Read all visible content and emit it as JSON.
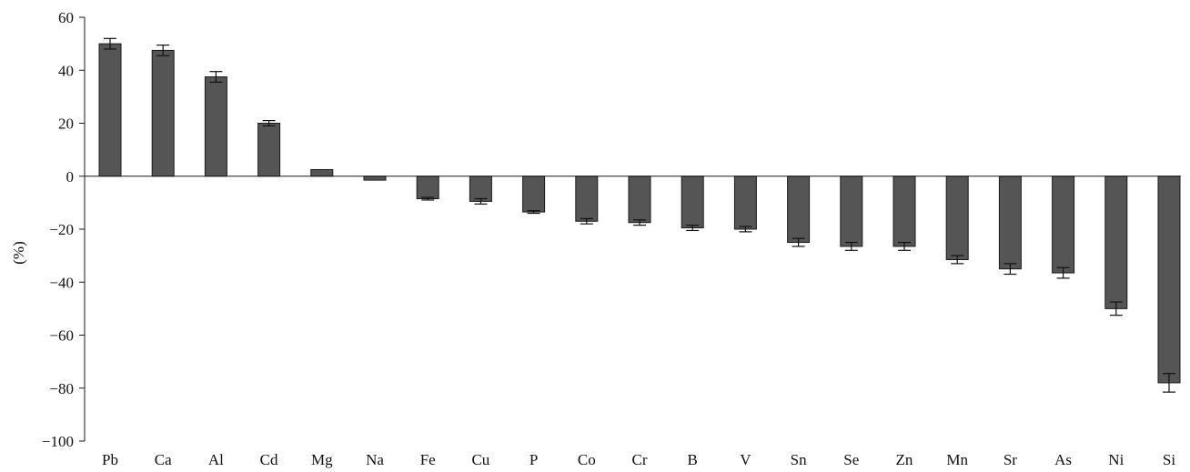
{
  "chart_data": {
    "type": "bar",
    "title": "",
    "xlabel": "",
    "ylabel": "(%)",
    "ylim": [
      -100,
      60
    ],
    "yticks": [
      60,
      40,
      20,
      0,
      -20,
      -40,
      -60,
      -80,
      -100
    ],
    "ytick_labels": [
      "60",
      "40",
      "20",
      "0",
      "−20",
      "−40",
      "−60",
      "−80",
      "−100"
    ],
    "categories": [
      "Pb",
      "Ca",
      "Al",
      "Cd",
      "Mg",
      "Na",
      "Fe",
      "Cu",
      "P",
      "Co",
      "Cr",
      "B",
      "V",
      "Sn",
      "Se",
      "Zn",
      "Mn",
      "Sr",
      "As",
      "Ni",
      "Si"
    ],
    "values": [
      50,
      47.5,
      37.5,
      20,
      2.5,
      -1.5,
      -8.5,
      -9.5,
      -13.5,
      -17,
      -17.5,
      -19.5,
      -20,
      -25,
      -26.5,
      -26.5,
      -31.5,
      -35,
      -36.5,
      -50,
      -78
    ],
    "errors": [
      2,
      2,
      2,
      1,
      0,
      0,
      0.5,
      1,
      0.5,
      1,
      1,
      1,
      1,
      1.5,
      1.5,
      1.5,
      1.5,
      2,
      2,
      2.5,
      3.5
    ],
    "bar_color": "#555555",
    "bar_edge_color": "#1a1a1a",
    "grid": false,
    "legend": "none"
  }
}
